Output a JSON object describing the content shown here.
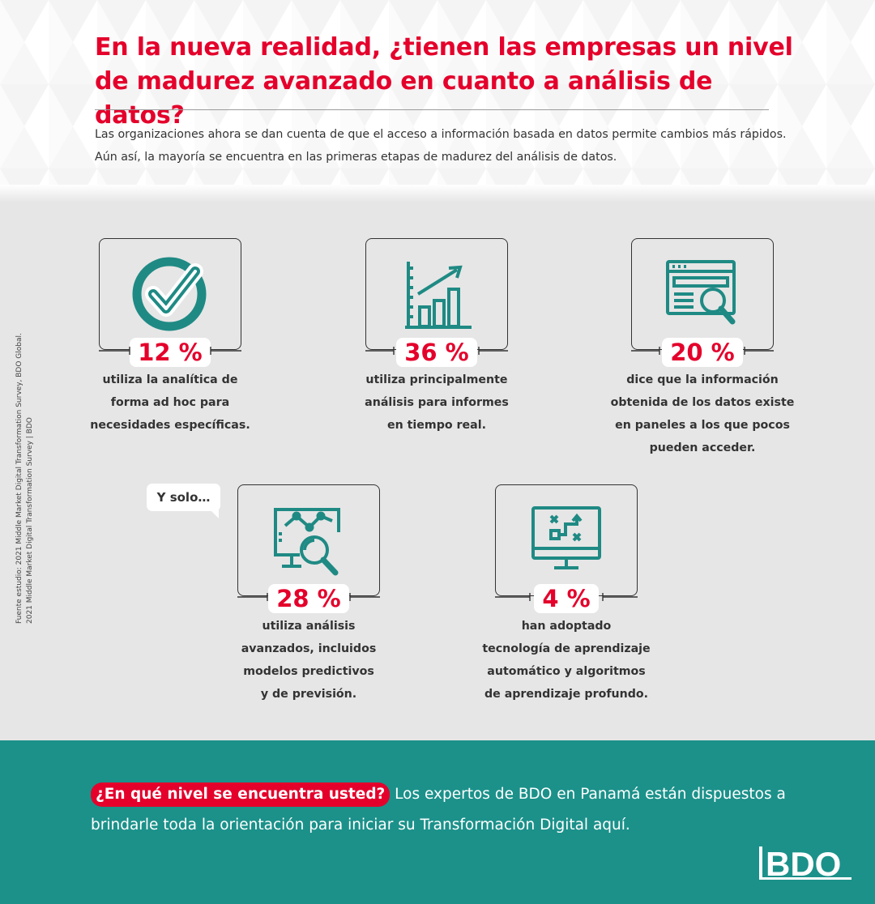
{
  "header": {
    "title": "En la nueva realidad, ¿tienen las empresas un nivel de madurez avanzado en cuanto a análisis de datos?",
    "intro_line1": "Las organizaciones ahora se dan cuenta de que el acceso a información basada en datos permite cambios más rápidos.",
    "intro_line2": "Aún así, la mayoría se encuentra en las primeras etapas de madurez del análisis de datos."
  },
  "source": {
    "line1": "Fuente estudio: 2021 Middle Market Digital Transformation Survey, BDO Global.",
    "line2": "2021 Middle Market Digital Transformation Survey | BDO"
  },
  "stats": [
    {
      "icon": "checkmark-circle-icon",
      "percent": "12 %",
      "lines": [
        "utiliza la analítica de",
        "forma ad hoc para",
        "necesidades específicas."
      ]
    },
    {
      "icon": "bar-chart-growth-icon",
      "percent": "36 %",
      "lines": [
        "utiliza principalmente",
        "análisis para informes",
        "en tiempo real."
      ]
    },
    {
      "icon": "dashboard-magnifier-icon",
      "percent": "20 %",
      "lines": [
        "dice que la información",
        "obtenida de los datos existe",
        "en paneles a los que pocos",
        "pueden acceder."
      ]
    },
    {
      "icon": "monitor-analytics-icon",
      "percent": "28 %",
      "lines": [
        "utiliza análisis",
        "avanzados, incluidos",
        "modelos predictivos",
        "y de previsión."
      ]
    },
    {
      "icon": "monitor-algorithm-icon",
      "percent": "4 %",
      "lines": [
        "han adoptado",
        "tecnología de aprendizaje",
        "automático y algoritmos",
        "de aprendizaje profundo."
      ]
    }
  ],
  "bubble": "Y solo…",
  "footer": {
    "cta": "¿En qué nivel se encuentra usted?",
    "text_line1": " Los expertos de BDO en Panamá están dispuestos a",
    "text_line2": "brindarle toda la orientación para iniciar su Transformación Digital aquí."
  },
  "logo": "BDO",
  "colors": {
    "accent": "#e4002b",
    "teal": "#1b918a",
    "icon": "#1f8a84"
  }
}
